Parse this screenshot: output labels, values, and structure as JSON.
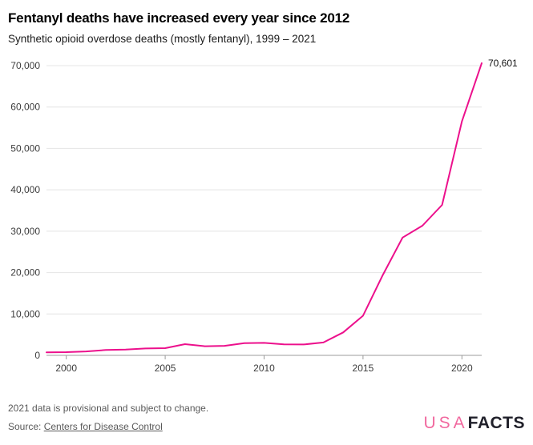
{
  "header": {
    "title": "Fentanyl deaths have increased every year since 2012",
    "subtitle": "Synthetic opioid overdose deaths (mostly fentanyl), 1999 – 2021"
  },
  "chart_data": {
    "type": "line",
    "title": "Fentanyl deaths have increased every year since 2012",
    "xlabel": "",
    "ylabel": "",
    "x": [
      1999,
      2000,
      2001,
      2002,
      2003,
      2004,
      2005,
      2006,
      2007,
      2008,
      2009,
      2010,
      2011,
      2012,
      2013,
      2014,
      2015,
      2016,
      2017,
      2018,
      2019,
      2020,
      2021
    ],
    "series": [
      {
        "name": "Synthetic opioid overdose deaths (mostly fentanyl)",
        "values": [
          730,
          782,
          957,
          1295,
          1400,
          1664,
          1742,
          2707,
          2213,
          2306,
          2946,
          3007,
          2666,
          2628,
          3105,
          5544,
          9580,
          19413,
          28466,
          31335,
          36359,
          56516,
          70601
        ]
      }
    ],
    "ylim": [
      0,
      70000
    ],
    "yticks": [
      0,
      10000,
      20000,
      30000,
      40000,
      50000,
      60000,
      70000
    ],
    "xticks": [
      2000,
      2005,
      2010,
      2015,
      2020
    ],
    "grid": true,
    "legend_position": "none",
    "line_color": "#ec108c",
    "grid_color": "#e4e4e4",
    "axis_color": "#9b9b9b",
    "tick_label_color": "#3c3c3c",
    "annotation_color": "#111111",
    "end_annotation": {
      "text": "70,601",
      "x": 2021,
      "y": 70601
    }
  },
  "footer": {
    "note": "2021 data is provisional and subject to change.",
    "source_prefix": "Source: ",
    "source_link_label": "Centers for Disease Control",
    "logo_usa": "USA",
    "logo_facts": "FACTS",
    "logo_usa_color": "#f1699f",
    "logo_facts_color": "#21212b"
  }
}
